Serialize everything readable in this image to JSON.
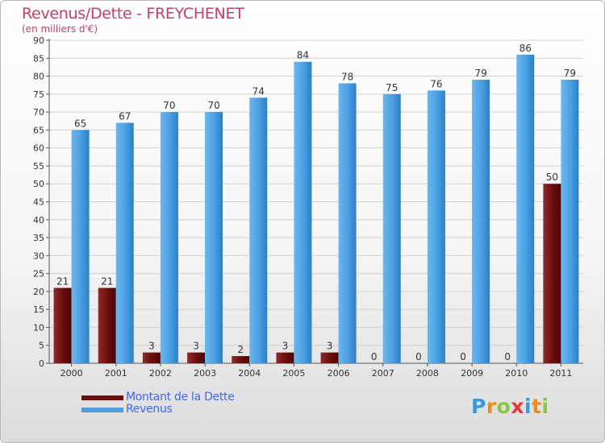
{
  "title": "Revenus/Dette - FREYCHENET",
  "subtitle": "(en milliers d'€)",
  "colors": {
    "dette": "#6b0d0d",
    "revenus": "#4a9fe2",
    "title": "#c0406a",
    "legend_text": "#4466ee",
    "grid": "#d0d0d0"
  },
  "legend": [
    {
      "label": "Montant de la Dette",
      "color": "#6b0d0d"
    },
    {
      "label": "Revenus",
      "color": "#4a9fe2"
    }
  ],
  "logo": {
    "text": "Proxiti",
    "letters": [
      {
        "ch": "P",
        "color": "#3a9ad9"
      },
      {
        "ch": "r",
        "color": "#f08a1c"
      },
      {
        "ch": "o",
        "color": "#8cc63f"
      },
      {
        "ch": "x",
        "color": "#e03a3e"
      },
      {
        "ch": "i",
        "color": "#3a9ad9"
      },
      {
        "ch": "t",
        "color": "#f08a1c"
      },
      {
        "ch": "i",
        "color": "#8cc63f"
      }
    ]
  },
  "chart_data": {
    "type": "bar",
    "title": "Revenus/Dette - FREYCHENET",
    "subtitle": "(en milliers d'€)",
    "xlabel": "",
    "ylabel": "",
    "ylim": [
      0,
      90
    ],
    "yticks": [
      0,
      5,
      10,
      15,
      20,
      25,
      30,
      35,
      40,
      45,
      50,
      55,
      60,
      65,
      70,
      75,
      80,
      85,
      90
    ],
    "grid": true,
    "categories": [
      "2000",
      "2001",
      "2002",
      "2003",
      "2004",
      "2005",
      "2006",
      "2007",
      "2008",
      "2009",
      "2010",
      "2011"
    ],
    "series": [
      {
        "name": "Montant de la Dette",
        "values": [
          21,
          21,
          3,
          3,
          2,
          3,
          3,
          0,
          0,
          0,
          0,
          50
        ]
      },
      {
        "name": "Revenus",
        "values": [
          65,
          67,
          70,
          70,
          74,
          84,
          78,
          75,
          76,
          79,
          86,
          79
        ]
      }
    ]
  }
}
